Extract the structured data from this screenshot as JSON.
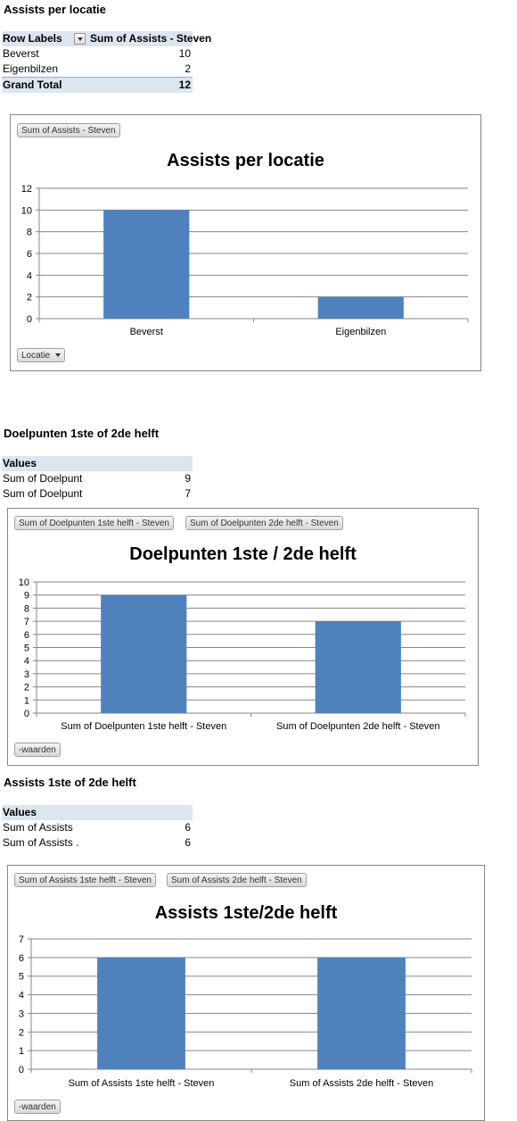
{
  "sections": [
    {
      "heading": "Assists per locatie",
      "pivot": {
        "header": [
          "Row Labels",
          "Sum of Assists - Steven"
        ],
        "rows": [
          {
            "label": "Beverst",
            "value": "10"
          },
          {
            "label": "Eigenbilzen",
            "value": "2"
          }
        ],
        "total": {
          "label": "Grand Total",
          "value": "12"
        }
      }
    },
    {
      "heading": "Doelpunten 1ste of 2de helft",
      "pivot": {
        "header": [
          "Values",
          ""
        ],
        "rows": [
          {
            "label": "Sum of Doelpunt",
            "value": "9"
          },
          {
            "label": "Sum of Doelpunt",
            "value": "7"
          }
        ]
      }
    },
    {
      "heading": "Assists 1ste of 2de helft",
      "pivot": {
        "header": [
          "Values",
          ""
        ],
        "rows": [
          {
            "label": "Sum of Assists",
            "value": "6"
          },
          {
            "label": "Sum of Assists .",
            "value": "6"
          }
        ]
      }
    }
  ],
  "chart_buttons": [
    {
      "top": [
        "Sum of Assists - Steven"
      ],
      "bottom": "Locatie",
      "bottom_has_arrow": true
    },
    {
      "top": [
        "Sum of Doelpunten 1ste helft - Steven",
        "Sum of Doelpunten 2de helft - Steven"
      ],
      "bottom": "-waarden",
      "bottom_has_arrow": false
    },
    {
      "top": [
        "Sum of Assists 1ste helft - Steven",
        "Sum of Assists 2de helft - Steven"
      ],
      "bottom": "-waarden",
      "bottom_has_arrow": false
    }
  ],
  "colors": {
    "bar": "#4f81bd",
    "gridline": "#868686",
    "pivot_header": "#dce6f1"
  },
  "chart_data": [
    {
      "type": "bar",
      "title": "Assists per locatie",
      "categories": [
        "Beverst",
        "Eigenbilzen"
      ],
      "values": [
        10,
        2
      ],
      "ylim": [
        0,
        12
      ],
      "yticks": [
        0,
        2,
        4,
        6,
        8,
        10,
        12
      ],
      "xlabel": "",
      "ylabel": "",
      "grid": true,
      "legend": "none"
    },
    {
      "type": "bar",
      "title": "Doelpunten 1ste / 2de helft",
      "categories": [
        "Sum of Doelpunten 1ste helft - Steven",
        "Sum of Doelpunten 2de helft - Steven"
      ],
      "values": [
        9,
        7
      ],
      "ylim": [
        0,
        10
      ],
      "yticks": [
        0,
        1,
        2,
        3,
        4,
        5,
        6,
        7,
        8,
        9,
        10
      ],
      "xlabel": "",
      "ylabel": "",
      "grid": true,
      "legend": "none"
    },
    {
      "type": "bar",
      "title": "Assists 1ste/2de helft",
      "categories": [
        "Sum of Assists 1ste helft - Steven",
        "Sum of Assists 2de helft - Steven"
      ],
      "values": [
        6,
        6
      ],
      "ylim": [
        0,
        7
      ],
      "yticks": [
        0,
        1,
        2,
        3,
        4,
        5,
        6,
        7
      ],
      "xlabel": "",
      "ylabel": "",
      "grid": true,
      "legend": "none"
    }
  ]
}
